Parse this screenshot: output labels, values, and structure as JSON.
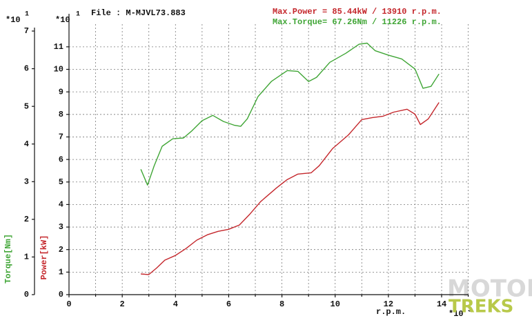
{
  "chart_data": {
    "type": "line",
    "file_label": "File : M-MJVL73.883",
    "max_power": "Max.Power = 85.44kW / 13910 r.p.m.",
    "max_torque": "Max.Torque= 67.26Nm / 11226 r.p.m.",
    "y_multiplier": "*10",
    "y_exponent": "1",
    "y2_multiplier": "*10",
    "y2_exponent": "1",
    "x_multiplier": "*10",
    "x_exponent": "3",
    "ylabel": "Torque[Nm]",
    "y2label": "Power[kW]",
    "xlabel": "r.p.m.",
    "watermark": [
      "MOTOR",
      "TREKS"
    ],
    "xlim": [
      0,
      15
    ],
    "xticks": [
      0,
      2,
      4,
      6,
      8,
      10,
      12,
      14
    ],
    "xminorticks": [
      1,
      3,
      5,
      7,
      9,
      11,
      13,
      15
    ],
    "ylim": [
      0,
      7
    ],
    "yticks": [
      0,
      1,
      2,
      3,
      4,
      5,
      6,
      7
    ],
    "y2lim": [
      0,
      11.7
    ],
    "y2ticks": [
      0,
      1,
      2,
      3,
      4,
      5,
      6,
      7,
      8,
      9,
      10,
      11
    ],
    "grid": true,
    "series": [
      {
        "name": "Torque",
        "color": "#3fa535",
        "axis": "y",
        "x": [
          2.7,
          2.95,
          3.2,
          3.5,
          3.9,
          4.3,
          4.6,
          5.0,
          5.4,
          5.8,
          6.2,
          6.45,
          6.7,
          7.1,
          7.6,
          8.2,
          8.6,
          9.0,
          9.3,
          9.8,
          10.4,
          10.9,
          11.2,
          11.5,
          12.0,
          12.5,
          13.0,
          13.3,
          13.6,
          13.9
        ],
        "values": [
          3.33,
          2.91,
          3.42,
          3.94,
          4.14,
          4.16,
          4.34,
          4.62,
          4.76,
          4.6,
          4.5,
          4.47,
          4.67,
          5.26,
          5.66,
          5.95,
          5.93,
          5.66,
          5.77,
          6.17,
          6.41,
          6.65,
          6.68,
          6.48,
          6.36,
          6.26,
          5.99,
          5.48,
          5.53,
          5.86
        ]
      },
      {
        "name": "Power",
        "color": "#c4262b",
        "axis": "y2",
        "x": [
          2.7,
          3.0,
          3.3,
          3.6,
          4.0,
          4.4,
          4.8,
          5.2,
          5.6,
          6.0,
          6.4,
          6.8,
          7.2,
          7.8,
          8.2,
          8.6,
          9.1,
          9.4,
          9.9,
          10.5,
          11.0,
          11.4,
          11.8,
          12.2,
          12.7,
          13.0,
          13.2,
          13.5,
          13.9
        ],
        "values": [
          0.92,
          0.89,
          1.19,
          1.53,
          1.74,
          2.05,
          2.42,
          2.66,
          2.81,
          2.9,
          3.09,
          3.58,
          4.13,
          4.74,
          5.11,
          5.35,
          5.41,
          5.72,
          6.48,
          7.09,
          7.77,
          7.86,
          7.92,
          8.1,
          8.23,
          8.01,
          7.55,
          7.8,
          8.53
        ]
      }
    ]
  }
}
